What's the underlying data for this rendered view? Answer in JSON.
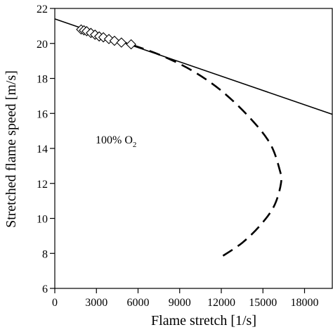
{
  "chart_data": {
    "type": "line",
    "x_label": "Flame stretch [1/s]",
    "y_label": "Stretched flame speed [m/s]",
    "annotation": {
      "text": "100% O",
      "subscript": "2"
    },
    "xlim": [
      0,
      20000
    ],
    "ylim": [
      6,
      22
    ],
    "xticks": [
      0,
      3000,
      6000,
      9000,
      12000,
      15000,
      18000
    ],
    "yticks": [
      6,
      8,
      10,
      12,
      14,
      16,
      18,
      20,
      22
    ],
    "series": [
      {
        "style": "solid",
        "color": "#000000",
        "x": [
          0,
          20000
        ],
        "values": [
          21.4,
          15.95
        ]
      },
      {
        "style": "dashed",
        "color": "#000000",
        "x": [
          2000,
          6000,
          8000,
          10000,
          12000,
          14000,
          15500,
          16200,
          16300,
          15800,
          14800,
          13500,
          12000
        ],
        "values": [
          20.8,
          19.8,
          19.2,
          18.4,
          17.3,
          15.8,
          14.3,
          12.8,
          12.0,
          10.7,
          9.6,
          8.6,
          7.8
        ]
      },
      {
        "style": "markers",
        "color": "#000000",
        "x": [
          1900,
          2100,
          2300,
          2600,
          2900,
          3200,
          3500,
          3900,
          4300,
          4800,
          5500
        ],
        "values": [
          20.8,
          20.75,
          20.7,
          20.6,
          20.5,
          20.4,
          20.35,
          20.25,
          20.15,
          20.05,
          19.95
        ]
      }
    ]
  }
}
